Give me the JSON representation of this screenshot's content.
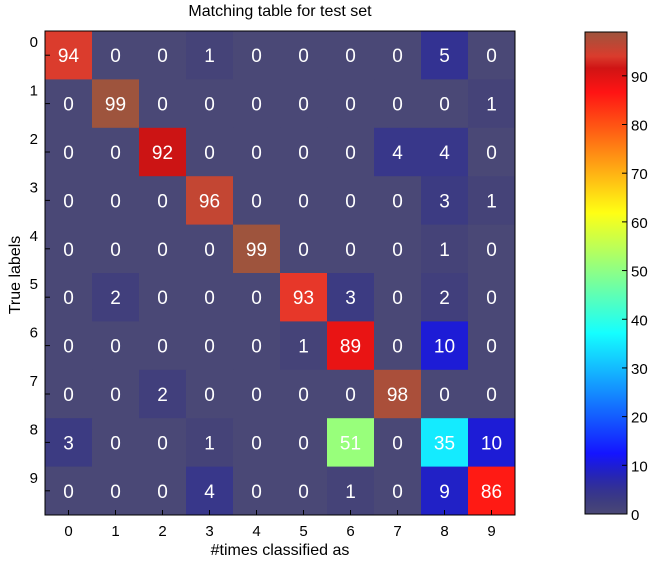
{
  "chart_data": {
    "type": "heatmap",
    "title": "Matching table for test set",
    "xlabel": "#times classified as",
    "ylabel": "True labels",
    "x_categories": [
      "0",
      "1",
      "2",
      "3",
      "4",
      "5",
      "6",
      "7",
      "8",
      "9"
    ],
    "y_categories": [
      "0",
      "1",
      "2",
      "3",
      "4",
      "5",
      "6",
      "7",
      "8",
      "9"
    ],
    "values": [
      [
        94,
        0,
        0,
        1,
        0,
        0,
        0,
        0,
        5,
        0
      ],
      [
        0,
        99,
        0,
        0,
        0,
        0,
        0,
        0,
        0,
        1
      ],
      [
        0,
        0,
        92,
        0,
        0,
        0,
        0,
        4,
        4,
        0
      ],
      [
        0,
        0,
        0,
        96,
        0,
        0,
        0,
        0,
        3,
        1
      ],
      [
        0,
        0,
        0,
        0,
        99,
        0,
        0,
        0,
        1,
        0
      ],
      [
        0,
        2,
        0,
        0,
        0,
        93,
        3,
        0,
        2,
        0
      ],
      [
        0,
        0,
        0,
        0,
        0,
        1,
        89,
        0,
        10,
        0
      ],
      [
        0,
        0,
        2,
        0,
        0,
        0,
        0,
        98,
        0,
        0
      ],
      [
        3,
        0,
        0,
        1,
        0,
        0,
        51,
        0,
        35,
        10
      ],
      [
        0,
        0,
        0,
        4,
        0,
        0,
        1,
        0,
        9,
        86
      ]
    ],
    "colorbar": {
      "range": [
        0,
        99
      ],
      "ticks": [
        "0",
        "10",
        "20",
        "30",
        "40",
        "50",
        "60",
        "70",
        "80",
        "90"
      ],
      "colormap": "jet, blended toward gray"
    },
    "value_label_color": "#ffffff"
  }
}
